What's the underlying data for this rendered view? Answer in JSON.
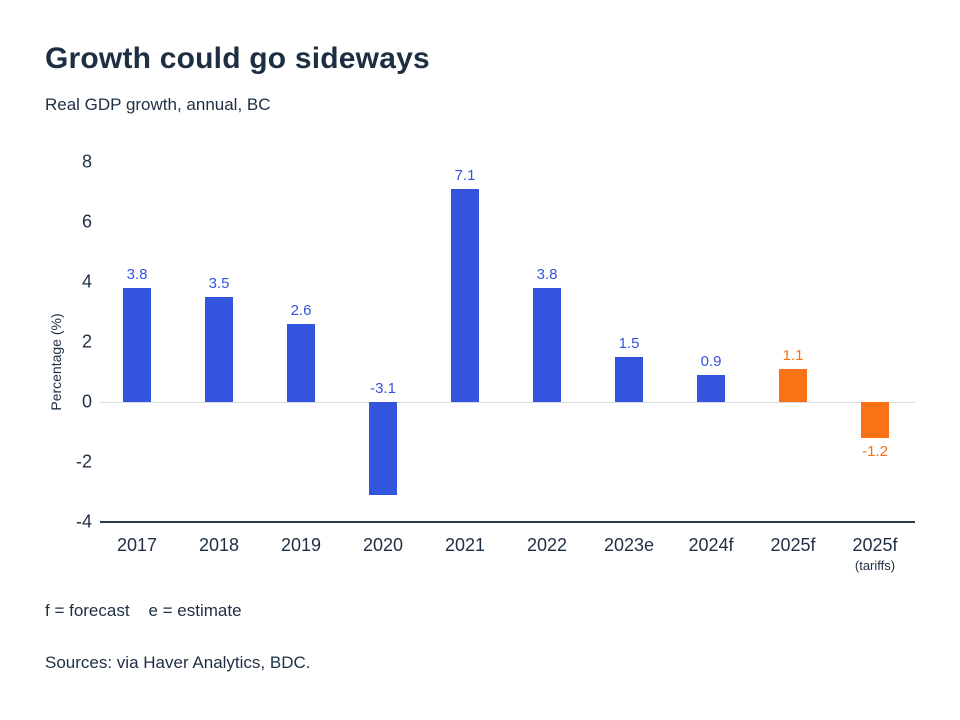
{
  "title": "Growth could go sideways",
  "subtitle": "Real GDP growth, annual, BC",
  "footnote": "f = forecast    e = estimate",
  "sources": "Sources: via Haver Analytics, BDC.",
  "colors": {
    "blue": "#3354dc",
    "orange": "#f97316",
    "text": "#1e2f43",
    "zero_gridline": "#d9dde2",
    "axis_line": "#2b3a4d"
  },
  "chart_data": {
    "type": "bar",
    "title": "Growth could go sideways",
    "subtitle": "Real GDP growth, annual, BC",
    "categories": [
      "2017",
      "2018",
      "2019",
      "2020",
      "2021",
      "2022",
      "2023e",
      "2024f",
      "2025f",
      "2025f"
    ],
    "category_sublabels": [
      "",
      "",
      "",
      "",
      "",
      "",
      "",
      "",
      "",
      "(tariffs)"
    ],
    "values": [
      3.8,
      3.5,
      2.6,
      -3.1,
      7.1,
      3.8,
      1.5,
      0.9,
      1.1,
      -1.2
    ],
    "bar_colors": [
      "#3354dc",
      "#3354dc",
      "#3354dc",
      "#3354dc",
      "#3354dc",
      "#3354dc",
      "#3354dc",
      "#3354dc",
      "#f97316",
      "#f97316"
    ],
    "label_placements": [
      "top",
      "top",
      "top",
      "zero",
      "top",
      "top",
      "top",
      "top",
      "top",
      "bottom"
    ],
    "xlabel": "",
    "ylabel": "Percentage (%)",
    "yticks": [
      -4,
      -2,
      0,
      2,
      4,
      6,
      8
    ],
    "ylim": [
      -4,
      8
    ],
    "grid": "zero-line-only",
    "legend": "none"
  }
}
